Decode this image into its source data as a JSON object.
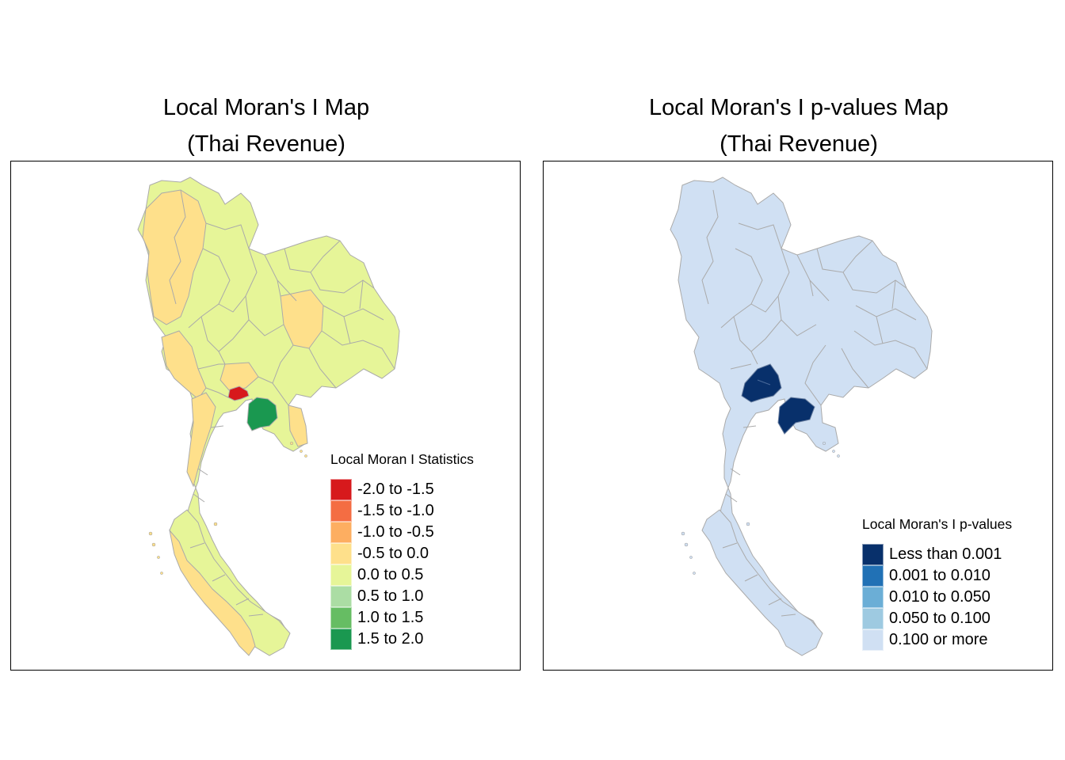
{
  "maps": [
    {
      "title_line1": "Local Moran's I Map",
      "title_line2": "(Thai Revenue)",
      "legend": {
        "title": "Local Moran I Statistics",
        "items": [
          {
            "label": "-2.0 to -1.5",
            "color": "#d7191c"
          },
          {
            "label": "-1.5 to -1.0",
            "color": "#f46d43"
          },
          {
            "label": "-1.0 to -0.5",
            "color": "#fdae61"
          },
          {
            "label": "-0.5 to 0.0",
            "color": "#fee08b"
          },
          {
            "label": "0.0 to 0.5",
            "color": "#e6f598"
          },
          {
            "label": "0.5 to 1.0",
            "color": "#abdda4"
          },
          {
            "label": "1.0 to 1.5",
            "color": "#66bd63"
          },
          {
            "label": "1.5 to 2.0",
            "color": "#1a9850"
          }
        ]
      },
      "colors": {
        "base": "#e6f598",
        "low_neg": "#fee08b",
        "hotspot_neg": "#d7191c",
        "hotspot_pos": "#1a9850"
      }
    },
    {
      "title_line1": "Local Moran's I p-values Map",
      "title_line2": "(Thai Revenue)",
      "legend": {
        "title": "Local Moran's I p-values",
        "items": [
          {
            "label": "Less than 0.001",
            "color": "#08306b"
          },
          {
            "label": "0.001 to 0.010",
            "color": "#2171b5"
          },
          {
            "label": "0.010 to 0.050",
            "color": "#6baed6"
          },
          {
            "label": "0.050 to 0.100",
            "color": "#9ecae1"
          },
          {
            "label": "0.100 or more",
            "color": "#d0e0f3"
          }
        ]
      },
      "colors": {
        "base": "#d0e0f3",
        "significant": "#08306b"
      }
    }
  ]
}
